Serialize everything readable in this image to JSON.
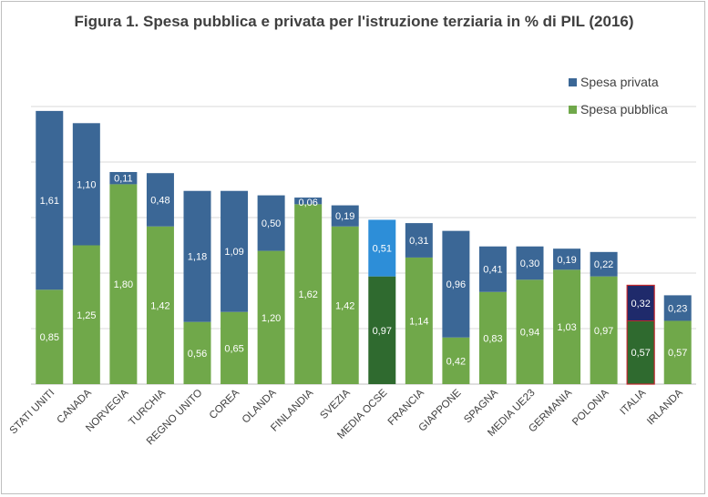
{
  "chart_data": {
    "type": "bar",
    "stacked": true,
    "title": "Figura 1. Spesa pubblica e privata per l'istruzione terziaria in % di PIL (2016)",
    "categories": [
      "STATI UNITI",
      "CANADA",
      "NORVEGIA",
      "TURCHIA",
      "REGNO UNITO",
      "COREA",
      "OLANDA",
      "FINLANDIA",
      "SVEZIA",
      "MEDIA OCSE",
      "FRANCIA",
      "GIAPPONE",
      "SPAGNA",
      "MEDIA UE23",
      "GERMANIA",
      "POLONIA",
      "ITALIA",
      "IRLANDA"
    ],
    "series": [
      {
        "name": "Spesa pubblica",
        "color": "#70a84a",
        "values": [
          0.85,
          1.25,
          1.8,
          1.42,
          0.56,
          0.65,
          1.2,
          1.62,
          1.42,
          0.97,
          1.14,
          0.42,
          0.83,
          0.94,
          1.03,
          0.97,
          0.57,
          0.57
        ],
        "labels": [
          "0,85",
          "1,25",
          "1,80",
          "1,42",
          "0,56",
          "0,65",
          "1,20",
          "1,62",
          "1,42",
          "0,97",
          "1,14",
          "0,42",
          "0,83",
          "0,94",
          "1,03",
          "0,97",
          "0,57",
          "0,57"
        ]
      },
      {
        "name": "Spesa privata",
        "color": "#3b6796",
        "values": [
          1.61,
          1.1,
          0.11,
          0.48,
          1.18,
          1.09,
          0.5,
          0.06,
          0.19,
          0.51,
          0.31,
          0.96,
          0.41,
          0.3,
          0.19,
          0.22,
          0.32,
          0.23
        ],
        "labels": [
          "1,61",
          "1,10",
          "0,11",
          "0,48",
          "1,18",
          "1,09",
          "0,50",
          "0,06",
          "0,19",
          "0,51",
          "0,31",
          "0,96",
          "0,41",
          "0,30",
          "0,19",
          "0,22",
          "0,32",
          "0,23"
        ]
      }
    ],
    "highlight_colors": {
      "MEDIA OCSE": {
        "Spesa pubblica": "#2f6a2f",
        "Spesa privata": "#2d8ed8"
      },
      "ITALIA": {
        "Spesa pubblica": "#2f6a2f",
        "Spesa privata": "#1f2a6b",
        "outline": "#c0272d"
      }
    },
    "ylim": [
      0,
      2.5
    ],
    "grid": true,
    "legend": "top-right",
    "xlabel": "",
    "ylabel": ""
  }
}
